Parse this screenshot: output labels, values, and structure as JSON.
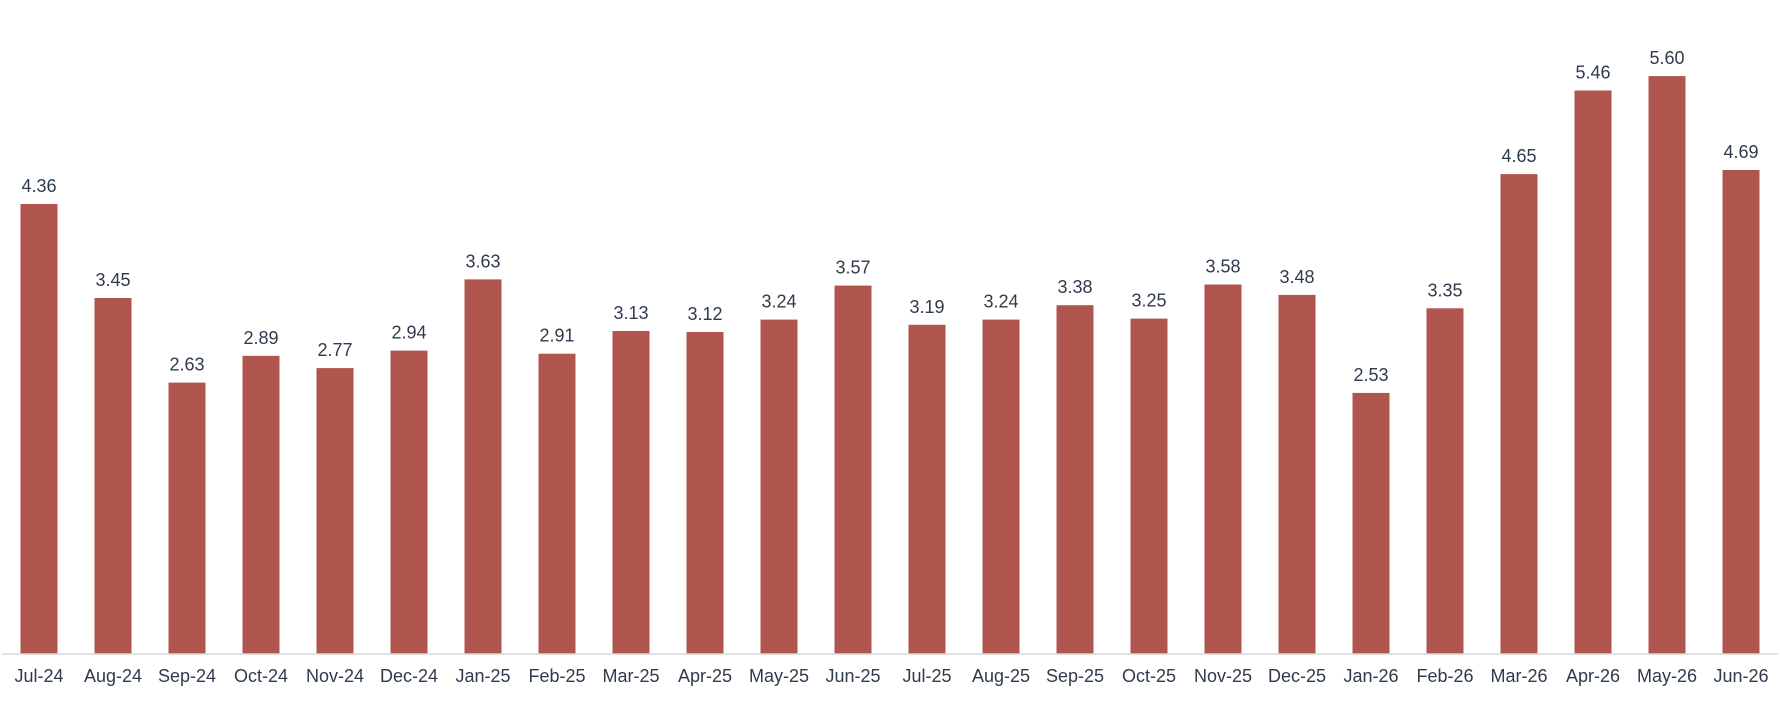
{
  "chart_data": {
    "type": "bar",
    "categories": [
      "Jul-24",
      "Aug-24",
      "Sep-24",
      "Oct-24",
      "Nov-24",
      "Dec-24",
      "Jan-25",
      "Feb-25",
      "Mar-25",
      "Apr-25",
      "May-25",
      "Jun-25",
      "Jul-25",
      "Aug-25",
      "Sep-25",
      "Oct-25",
      "Nov-25",
      "Dec-25",
      "Jan-26",
      "Feb-26",
      "Mar-26",
      "Apr-26",
      "May-26",
      "Jun-26"
    ],
    "values": [
      4.36,
      3.45,
      2.63,
      2.89,
      2.77,
      2.94,
      3.63,
      2.91,
      3.13,
      3.12,
      3.24,
      3.57,
      3.19,
      3.24,
      3.38,
      3.25,
      3.58,
      3.48,
      2.53,
      3.35,
      4.65,
      5.46,
      5.6,
      4.69
    ],
    "value_labels": [
      "4.36",
      "3.45",
      "2.63",
      "2.89",
      "2.77",
      "2.94",
      "3.63",
      "2.91",
      "3.13",
      "3.12",
      "3.24",
      "3.57",
      "3.19",
      "3.24",
      "3.38",
      "3.25",
      "3.58",
      "3.48",
      "2.53",
      "3.35",
      "4.65",
      "5.46",
      "5.60",
      "4.69"
    ],
    "title": "",
    "xlabel": "",
    "ylabel": "",
    "ylim": [
      0,
      6
    ],
    "grid": false,
    "legend": "none",
    "bar_color": "#B0554E",
    "text_color": "#2F3B4C",
    "axis_color": "#D9D9D9"
  }
}
